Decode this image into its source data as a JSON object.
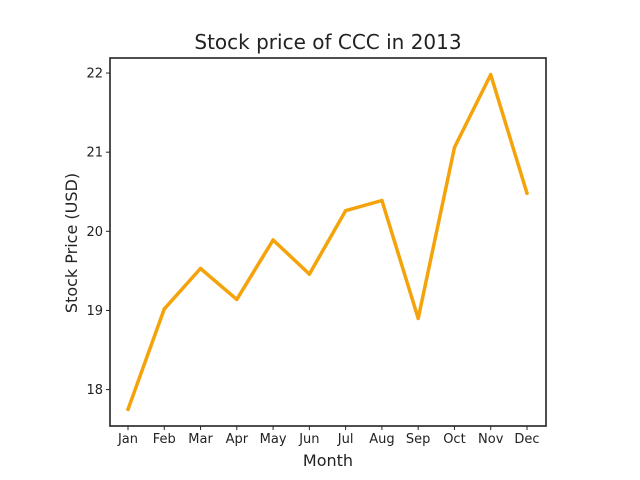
{
  "chart_data": {
    "type": "line",
    "title": "Stock price of CCC in 2013",
    "xlabel": "Month",
    "ylabel": "Stock Price (USD)",
    "categories": [
      "Jan",
      "Feb",
      "Mar",
      "Apr",
      "May",
      "Jun",
      "Jul",
      "Aug",
      "Sep",
      "Oct",
      "Nov",
      "Dec"
    ],
    "series": [
      {
        "values": [
          17.75,
          19.02,
          19.53,
          19.14,
          19.89,
          19.46,
          20.26,
          20.39,
          18.9,
          21.06,
          21.98,
          20.48
        ],
        "color": "#f5a30a"
      }
    ],
    "ylim": [
      17.54,
      22.19
    ],
    "yticks": [
      18,
      19,
      20,
      21,
      22
    ],
    "grid": false,
    "legend": "none"
  }
}
